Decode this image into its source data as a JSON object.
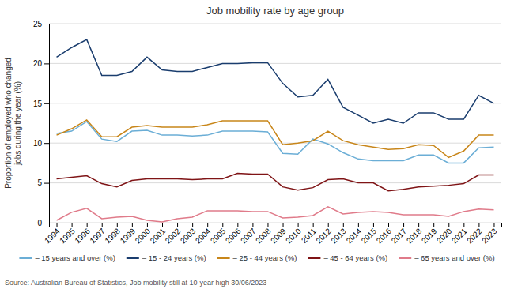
{
  "chart_data": {
    "type": "line",
    "title": "Job mobility rate by age group",
    "ylabel": "Proportion of employed who changed\njobs during the year (%)",
    "source": "Source: Australian Bureau of Statistics, Job mobility still at 10-year high 30/06/2023",
    "x": [
      1994,
      1995,
      1996,
      1997,
      1998,
      1999,
      2000,
      2001,
      2002,
      2003,
      2004,
      2005,
      2006,
      2007,
      2008,
      2009,
      2010,
      2011,
      2012,
      2013,
      2014,
      2015,
      2016,
      2017,
      2018,
      2019,
      2020,
      2021,
      2022,
      2023
    ],
    "series": [
      {
        "name": "– 15 years and over (%)",
        "color": "#6baed6",
        "values": [
          11.2,
          11.5,
          12.7,
          10.5,
          10.2,
          11.5,
          11.6,
          11.0,
          11.0,
          10.9,
          11.0,
          11.5,
          11.5,
          11.5,
          11.4,
          8.7,
          8.6,
          10.5,
          9.9,
          8.8,
          8.0,
          7.8,
          7.8,
          7.8,
          8.5,
          8.5,
          7.5,
          7.5,
          9.4,
          9.5
        ]
      },
      {
        "name": "– 15 - 24 years (%)",
        "color": "#1a3d6e",
        "values": [
          20.8,
          22.0,
          23.0,
          18.5,
          18.5,
          19.0,
          20.8,
          19.2,
          19.0,
          19.0,
          19.5,
          20.0,
          20.0,
          20.1,
          20.1,
          17.5,
          15.8,
          16.0,
          18.0,
          14.5,
          13.5,
          12.5,
          13.0,
          12.5,
          13.8,
          13.8,
          13.0,
          13.0,
          16.0,
          15.0
        ]
      },
      {
        "name": "– 25 - 44 years (%)",
        "color": "#c8861a",
        "values": [
          11.0,
          11.8,
          12.9,
          10.8,
          10.8,
          12.0,
          12.2,
          12.0,
          12.0,
          12.0,
          12.3,
          12.8,
          12.8,
          12.8,
          12.8,
          9.8,
          10.0,
          10.3,
          11.5,
          10.3,
          9.8,
          9.5,
          9.2,
          9.3,
          9.8,
          9.7,
          8.2,
          9.0,
          11.0,
          11.0
        ]
      },
      {
        "name": "– 45 - 64 years (%)",
        "color": "#7f1416",
        "values": [
          5.5,
          5.7,
          5.9,
          4.9,
          4.5,
          5.3,
          5.5,
          5.5,
          5.5,
          5.4,
          5.5,
          5.5,
          6.2,
          6.1,
          6.1,
          4.5,
          4.1,
          4.4,
          5.4,
          5.5,
          5.0,
          5.0,
          4.0,
          4.2,
          4.5,
          4.6,
          4.7,
          4.9,
          6.0,
          6.0
        ]
      },
      {
        "name": "– 65 years and over (%)",
        "color": "#e07b8a",
        "values": [
          0.3,
          1.3,
          1.8,
          0.5,
          0.7,
          0.8,
          0.3,
          0.1,
          0.5,
          0.7,
          1.5,
          1.5,
          1.5,
          1.4,
          1.4,
          0.6,
          0.7,
          0.9,
          2.0,
          1.1,
          1.3,
          1.4,
          1.3,
          1.0,
          1.0,
          1.0,
          0.8,
          1.4,
          1.7,
          1.6
        ]
      }
    ],
    "xlim": [
      1993.5,
      2023.5
    ],
    "xticks": [
      1994,
      1995,
      1996,
      1997,
      1998,
      1999,
      2000,
      2001,
      2002,
      2003,
      2004,
      2005,
      2006,
      2007,
      2008,
      2009,
      2010,
      2011,
      2012,
      2013,
      2014,
      2015,
      2016,
      2017,
      2018,
      2019,
      2020,
      2021,
      2022,
      2023
    ],
    "ylim": [
      0,
      25
    ],
    "yticks": [
      0,
      5,
      10,
      15,
      20,
      25
    ],
    "grid": true,
    "legend": "bottom"
  }
}
